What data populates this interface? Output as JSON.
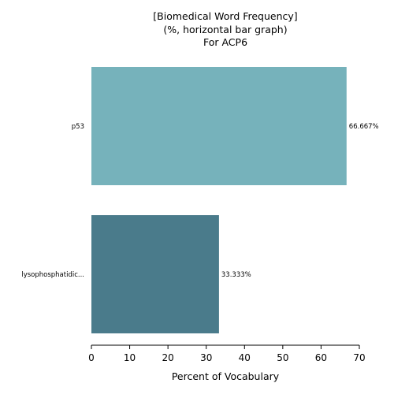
{
  "chart_data": {
    "type": "bar",
    "orientation": "horizontal",
    "title_lines": [
      "[Biomedical Word Frequency]",
      "(%, horizontal bar graph)",
      "For ACP6"
    ],
    "categories": [
      "p53",
      "lysophosphatidic..."
    ],
    "values": [
      66.667,
      33.333
    ],
    "value_labels": [
      "66.667%",
      "33.333%"
    ],
    "colors": [
      "#76b2bb",
      "#4a7b8b"
    ],
    "xlabel": "Percent of Vocabulary",
    "ylabel": "",
    "xlim": [
      0,
      70
    ],
    "xticks": [
      0,
      10,
      20,
      30,
      40,
      50,
      60,
      70
    ],
    "grid": false,
    "legend": "none"
  }
}
